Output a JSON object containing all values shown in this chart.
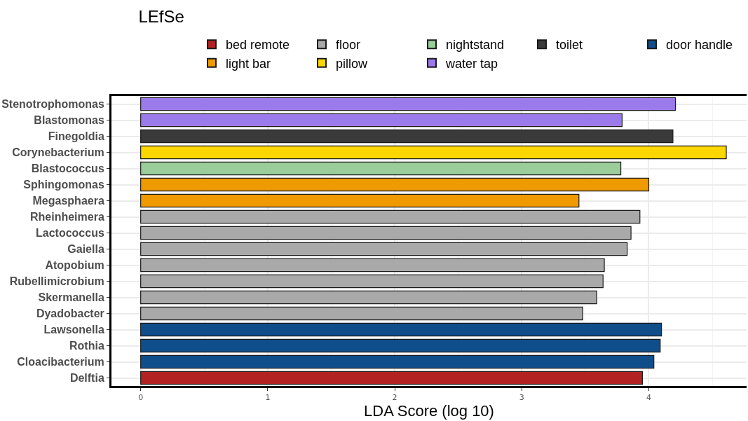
{
  "chart_data": {
    "type": "bar",
    "orientation": "horizontal",
    "title": "LEfSe",
    "xlabel": "LDA Score (log 10)",
    "categories": [
      "Stenotrophomonas",
      "Blastomonas",
      "Finegoldia",
      "Corynebacterium",
      "Blastococcus",
      "Sphingomonas",
      "Megasphaera",
      "Rheinheimera",
      "Lactococcus",
      "Gaiella",
      "Atopobium",
      "Rubellimicrobium",
      "Skermanella",
      "Dyadobacter",
      "Lawsonella",
      "Rothia",
      "Cloacibacterium",
      "Delftia"
    ],
    "series": [
      {
        "name": "bed remote",
        "color": "#b22222",
        "values": [
          null,
          null,
          null,
          null,
          null,
          null,
          null,
          null,
          null,
          null,
          null,
          null,
          null,
          null,
          null,
          null,
          null,
          3.95
        ]
      },
      {
        "name": "floor",
        "color": "#a9a9a9",
        "values": [
          null,
          null,
          null,
          null,
          null,
          null,
          null,
          3.93,
          3.86,
          3.83,
          3.65,
          3.64,
          3.59,
          3.48,
          null,
          null,
          null,
          null
        ]
      },
      {
        "name": "nightstand",
        "color": "#9acd9a",
        "values": [
          null,
          null,
          null,
          null,
          3.78,
          null,
          null,
          null,
          null,
          null,
          null,
          null,
          null,
          null,
          null,
          null,
          null,
          null
        ]
      },
      {
        "name": "toilet",
        "color": "#3a3a3a",
        "values": [
          null,
          null,
          4.19,
          null,
          null,
          null,
          null,
          null,
          null,
          null,
          null,
          null,
          null,
          null,
          null,
          null,
          null,
          null
        ]
      },
      {
        "name": "door handle",
        "color": "#104e8b",
        "values": [
          null,
          null,
          null,
          null,
          null,
          null,
          null,
          null,
          null,
          null,
          null,
          null,
          null,
          null,
          4.1,
          4.09,
          4.04,
          null
        ]
      },
      {
        "name": "light bar",
        "color": "#ee9a00",
        "values": [
          null,
          null,
          null,
          null,
          null,
          4.0,
          3.45,
          null,
          null,
          null,
          null,
          null,
          null,
          null,
          null,
          null,
          null,
          null
        ]
      },
      {
        "name": "pillow",
        "color": "#ffd700",
        "values": [
          null,
          null,
          null,
          4.61,
          null,
          null,
          null,
          null,
          null,
          null,
          null,
          null,
          null,
          null,
          null,
          null,
          null,
          null
        ]
      },
      {
        "name": "water tap",
        "color": "#9b7aeb",
        "values": [
          4.21,
          3.79,
          null,
          null,
          null,
          null,
          null,
          null,
          null,
          null,
          null,
          null,
          null,
          null,
          null,
          null,
          null,
          null
        ]
      }
    ],
    "xlim": [
      -0.23,
      4.77
    ],
    "xticks": [
      0,
      1,
      2,
      3,
      4
    ],
    "grid": true,
    "legend": "top"
  }
}
